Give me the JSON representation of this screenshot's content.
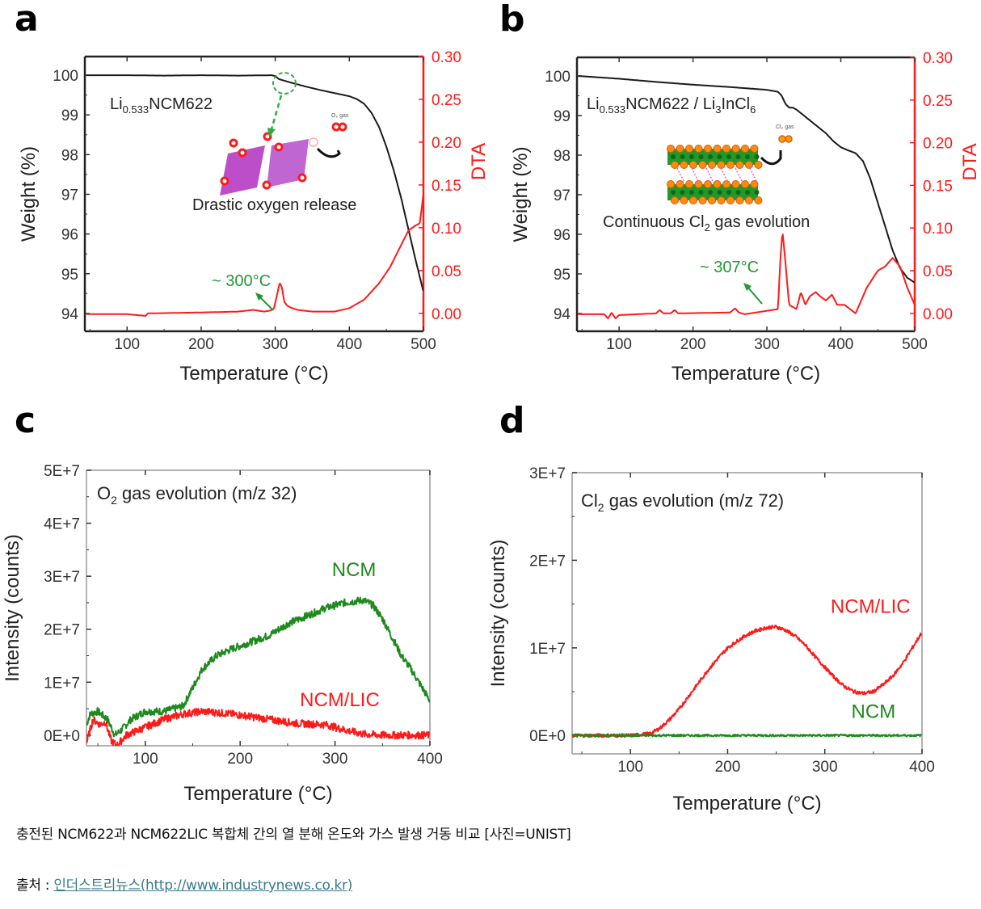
{
  "chart_data": [
    {
      "id": "a",
      "panel_label": "a",
      "type": "line",
      "xlabel": "Temperature (°C)",
      "ylabel": "Weight (%)",
      "y2label": "DTA",
      "xlim": [
        43,
        500
      ],
      "ylim": [
        93.55,
        100.47
      ],
      "y2lim": [
        -0.021,
        0.3
      ],
      "xticks": [
        100,
        200,
        300,
        400,
        500
      ],
      "yticks": [
        94,
        95,
        96,
        97,
        98,
        99,
        100
      ],
      "y2ticks": [
        "0.00",
        "0.05",
        "0.10",
        "0.15",
        "0.20",
        "0.25",
        "0.30"
      ],
      "annotations": {
        "sample": {
          "base": "Li",
          "sub": "0.533",
          "rest": "NCM622"
        },
        "event": "Drastic oxygen release",
        "gas": "O₂ gas",
        "onset": "~ 300°C"
      },
      "series": [
        {
          "name": "Weight",
          "axis": "left",
          "color": "#1a1a1a",
          "x": [
            45,
            100,
            150,
            200,
            250,
            295,
            300,
            305,
            320,
            340,
            360,
            380,
            400,
            410,
            420,
            430,
            440,
            450,
            460,
            470,
            480,
            490,
            500
          ],
          "y": [
            100.0,
            100.0,
            99.99,
            100.0,
            99.99,
            100.0,
            99.98,
            99.9,
            99.82,
            99.72,
            99.63,
            99.55,
            99.47,
            99.4,
            99.28,
            99.05,
            98.7,
            98.2,
            97.6,
            96.9,
            96.1,
            95.3,
            94.55
          ]
        },
        {
          "name": "DTA",
          "axis": "right",
          "color": "#ff1a1a",
          "x": [
            45,
            100,
            125,
            128,
            135,
            200,
            250,
            270,
            285,
            292,
            298,
            302,
            306,
            309,
            312,
            316,
            320,
            330,
            350,
            380,
            400,
            420,
            440,
            455,
            470,
            480,
            490,
            495,
            498,
            500
          ],
          "y": [
            -0.001,
            -0.001,
            -0.003,
            0.0,
            0.0,
            0.001,
            0.002,
            0.004,
            0.002,
            0.003,
            0.005,
            0.02,
            0.036,
            0.03,
            0.014,
            0.009,
            0.007,
            0.004,
            0.002,
            0.002,
            0.006,
            0.016,
            0.035,
            0.054,
            0.08,
            0.097,
            0.103,
            0.105,
            0.125,
            0.14
          ]
        }
      ]
    },
    {
      "id": "b",
      "panel_label": "b",
      "type": "line",
      "xlabel": "Temperature (°C)",
      "ylabel": "Weight (%)",
      "y2label": "DTA",
      "xlim": [
        43,
        500
      ],
      "ylim": [
        93.55,
        100.47
      ],
      "y2lim": [
        -0.021,
        0.3
      ],
      "xticks": [
        100,
        200,
        300,
        400,
        500
      ],
      "yticks": [
        94,
        95,
        96,
        97,
        98,
        99,
        100
      ],
      "y2ticks": [
        "0.00",
        "0.05",
        "0.10",
        "0.15",
        "0.20",
        "0.25",
        "0.30"
      ],
      "annotations": {
        "sample": {
          "base": "Li",
          "sub": "0.533",
          "rest": "NCM622 / Li",
          "sub2": "3",
          "rest2": "InCl",
          "sub3": "6"
        },
        "event_pre": "Continuous Cl",
        "event_sub": "2",
        "event_post": " gas evolution",
        "gas": "Cl₂ gas",
        "onset": "~ 307°C"
      },
      "series": [
        {
          "name": "Weight",
          "axis": "left",
          "color": "#1a1a1a",
          "x": [
            45,
            100,
            150,
            200,
            250,
            300,
            315,
            320,
            325,
            330,
            335,
            340,
            350,
            360,
            370,
            380,
            390,
            400,
            410,
            420,
            430,
            440,
            450,
            460,
            470,
            480,
            490,
            500
          ],
          "y": [
            100.0,
            99.93,
            99.85,
            99.78,
            99.72,
            99.65,
            99.6,
            99.5,
            99.3,
            99.2,
            99.2,
            99.15,
            99.0,
            98.85,
            98.7,
            98.55,
            98.35,
            98.2,
            98.12,
            98.05,
            97.85,
            97.4,
            96.8,
            96.2,
            95.6,
            95.15,
            94.9,
            94.78
          ]
        },
        {
          "name": "DTA",
          "axis": "right",
          "color": "#ff1a1a",
          "x": [
            45,
            80,
            85,
            90,
            95,
            100,
            150,
            155,
            160,
            170,
            175,
            180,
            250,
            257,
            262,
            270,
            300,
            315,
            318,
            321,
            325,
            330,
            340,
            346,
            352,
            358,
            366,
            372,
            380,
            388,
            395,
            405,
            420,
            435,
            450,
            460,
            470,
            480,
            490,
            500
          ],
          "y": [
            -0.001,
            -0.001,
            -0.006,
            0.001,
            -0.006,
            -0.002,
            0.0,
            0.004,
            0.0,
            0.0,
            0.004,
            0.0,
            0.001,
            0.006,
            0.001,
            -0.001,
            0.003,
            0.005,
            0.06,
            0.097,
            0.06,
            0.01,
            0.005,
            0.025,
            0.01,
            0.02,
            0.025,
            0.02,
            0.015,
            0.022,
            0.01,
            0.01,
            0.0,
            0.03,
            0.05,
            0.055,
            0.065,
            0.055,
            0.03,
            0.01
          ]
        }
      ]
    },
    {
      "id": "c",
      "panel_label": "c",
      "type": "line",
      "title": {
        "pre": "O",
        "sub": "2",
        "post": " gas evolution (m/z 32)"
      },
      "xlabel": "Temperature (°C)",
      "ylabel": "Intensity (counts)",
      "xlim": [
        38,
        400
      ],
      "ylim": [
        -2000000.0,
        50000000.0
      ],
      "xticks": [
        100,
        200,
        300,
        400
      ],
      "yticks": [
        0,
        10000000.0,
        20000000.0,
        30000000.0,
        40000000.0,
        50000000.0
      ],
      "ytick_labels": [
        "0E+0",
        "1E+7",
        "2E+7",
        "3E+7",
        "4E+7",
        "5E+7"
      ],
      "series": [
        {
          "name": "NCM",
          "color": "#1e8a1e",
          "noise": 700000.0,
          "x": [
            38,
            42,
            50,
            60,
            68,
            75,
            85,
            100,
            120,
            140,
            150,
            160,
            175,
            190,
            210,
            230,
            250,
            270,
            290,
            310,
            330,
            340,
            350,
            360,
            370,
            380,
            390,
            400
          ],
          "y": [
            2000000.0,
            4000000.0,
            4500000.0,
            3000000.0,
            0.0,
            1000000.0,
            3000000.0,
            4500000.0,
            4500000.0,
            5500000.0,
            9000000.0,
            12500000.0,
            15000000.0,
            16200000.0,
            17500000.0,
            18800000.0,
            21000000.0,
            22500000.0,
            24000000.0,
            25000000.0,
            25500000.0,
            24500000.0,
            22000000.0,
            18500000.0,
            15000000.0,
            12500000.0,
            9500000.0,
            6500000.0
          ]
        },
        {
          "name": "NCM/LIC",
          "color": "#ff1a1a",
          "noise": 700000.0,
          "x": [
            38,
            45,
            52,
            58,
            64,
            70,
            80,
            100,
            120,
            140,
            160,
            180,
            200,
            230,
            260,
            290,
            310,
            330,
            350,
            370,
            400
          ],
          "y": [
            -1500000.0,
            3000000.0,
            2000000.0,
            2500000.0,
            -1000000.0,
            -2000000.0,
            0.0,
            1500000.0,
            3000000.0,
            4000000.0,
            4500000.0,
            4200000.0,
            3800000.0,
            3000000.0,
            2200000.0,
            2000000.0,
            1000000.0,
            200000.0,
            0.0,
            0.0,
            0.0
          ]
        }
      ],
      "series_labels": [
        {
          "name": "NCM",
          "text": "NCM",
          "color": "#1e8a1e",
          "x": 320,
          "y": 30000000.0
        },
        {
          "name": "NCM/LIC",
          "text": "NCM/LIC",
          "color": "#ff1a1a",
          "x": 305,
          "y": 5500000.0
        }
      ]
    },
    {
      "id": "d",
      "panel_label": "d",
      "type": "line",
      "title": {
        "pre": "Cl",
        "sub": "2",
        "post": " gas evolution (m/z 72)"
      },
      "xlabel": "Temperature (°C)",
      "ylabel": "Intensity (counts)",
      "xlim": [
        40,
        400
      ],
      "ylim": [
        -2100000.0,
        30000000.0
      ],
      "xticks": [
        100,
        200,
        300,
        400
      ],
      "yticks": [
        0,
        10000000.0,
        20000000.0,
        30000000.0
      ],
      "ytick_labels": [
        "0E+0",
        "1E+7",
        "2E+7",
        "3E+7"
      ],
      "series": [
        {
          "name": "NCM/LIC",
          "color": "#ff1a1a",
          "noise": 200000.0,
          "x": [
            40,
            100,
            120,
            130,
            140,
            150,
            160,
            170,
            180,
            190,
            200,
            210,
            220,
            230,
            240,
            250,
            260,
            270,
            280,
            290,
            300,
            310,
            320,
            330,
            340,
            350,
            360,
            370,
            380,
            390,
            400
          ],
          "y": [
            0.0,
            0.0,
            200000.0,
            800000.0,
            1800000.0,
            3000000.0,
            4500000.0,
            6000000.0,
            7500000.0,
            8800000.0,
            10000000.0,
            10800000.0,
            11500000.0,
            12000000.0,
            12300000.0,
            12400000.0,
            12000000.0,
            11300000.0,
            10300000.0,
            9000000.0,
            7800000.0,
            6600000.0,
            5600000.0,
            5000000.0,
            4800000.0,
            5000000.0,
            5800000.0,
            6800000.0,
            8200000.0,
            10000000.0,
            11800000.0
          ]
        },
        {
          "name": "NCM",
          "color": "#1e8a1e",
          "noise": 120000.0,
          "x": [
            40,
            400
          ],
          "y": [
            0.0,
            0.0
          ]
        }
      ],
      "series_labels": [
        {
          "name": "NCM/LIC",
          "text": "NCM/LIC",
          "color": "#ff1a1a",
          "x": 347,
          "y": 14000000.0
        },
        {
          "name": "NCM",
          "text": "NCM",
          "color": "#1e8a1e",
          "x": 350,
          "y": 2000000.0
        }
      ]
    }
  ],
  "caption": "충전된 NCM622과 NCM622LIC 복합체 간의 열 분해 온도와 가스 발생 거동 비교 [사진=UNIST]",
  "source": {
    "prefix": "출처 : ",
    "link_text": "인더스트리뉴스(http://www.industrynews.co.kr)"
  }
}
